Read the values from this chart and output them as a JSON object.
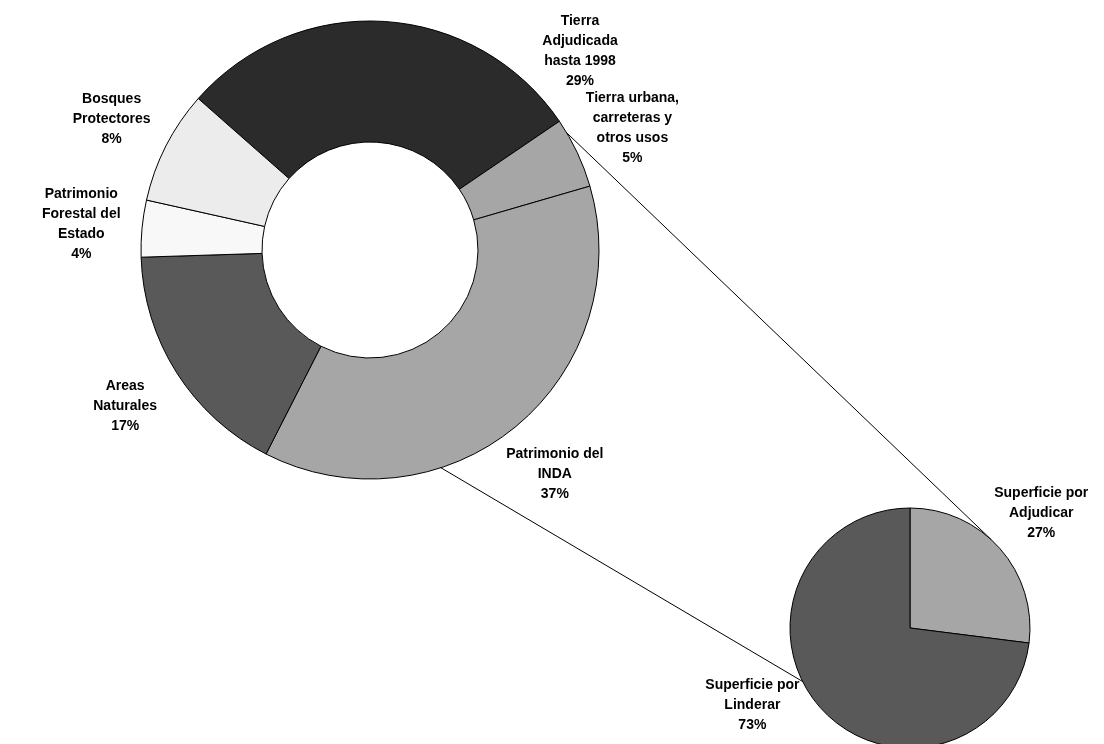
{
  "chart_data": [
    {
      "type": "donut",
      "categories": [
        "Tierra Adjudicada hasta 1998",
        "Tierra urbana, carreteras y otros usos",
        "Patrimonio del INDA",
        "Areas Naturales",
        "Patrimonio Forestal del Estado",
        "Bosques Protectores"
      ],
      "values": [
        29,
        5,
        37,
        17,
        4,
        8
      ],
      "value_labels": [
        "29%",
        "5%",
        "37%",
        "17%",
        "4%",
        "8%"
      ],
      "colors": [
        "#2b2b2b",
        "#a6a6a6",
        "#a6a6a6",
        "#595959",
        "#f8f8f8",
        "#ececec"
      ]
    },
    {
      "type": "pie",
      "categories": [
        "Superficie por Adjudicar",
        "Superficie por Linderar"
      ],
      "values": [
        27,
        73
      ],
      "value_labels": [
        "27%",
        "73%"
      ],
      "colors": [
        "#a6a6a6",
        "#595959"
      ]
    }
  ]
}
